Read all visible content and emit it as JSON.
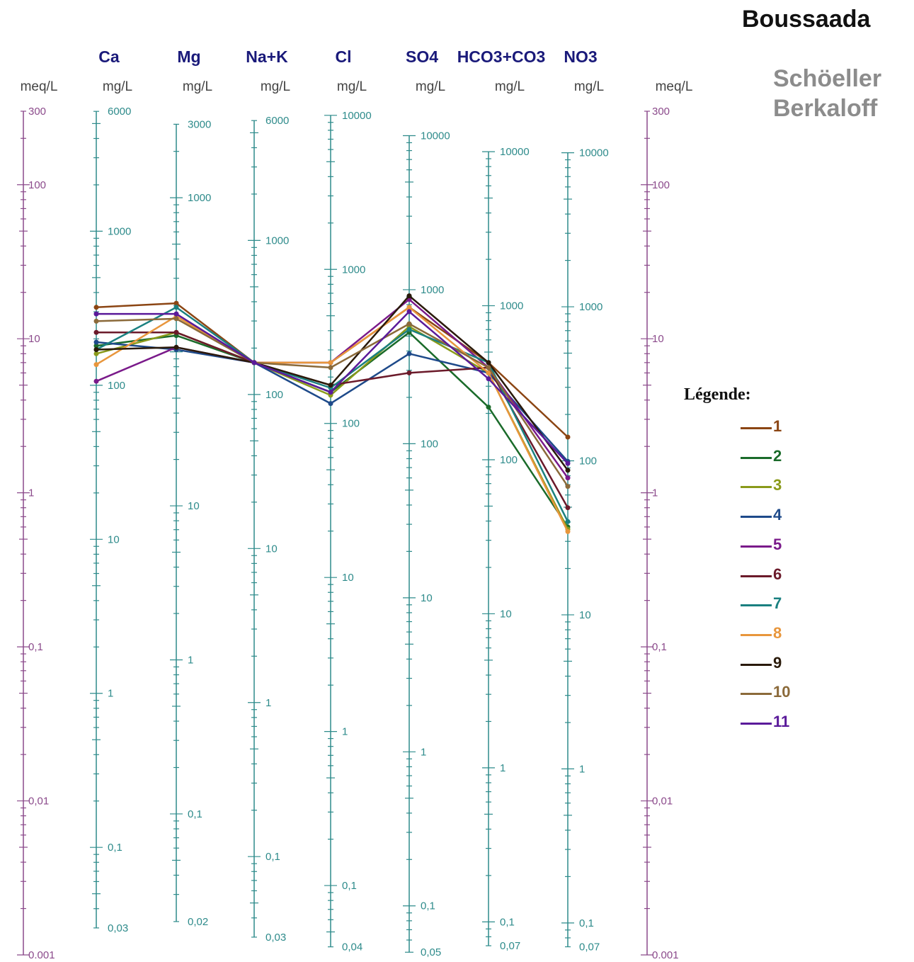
{
  "title": "Boussaada",
  "subtitle": [
    "Schöeller",
    "Berkaloff"
  ],
  "legend": {
    "title": "Légende:"
  },
  "chart_data": {
    "type": "line",
    "y_scale": "log",
    "ylim_meq": [
      0.001,
      300
    ],
    "unit_outer": "meq/L",
    "unit_inner": "mg/L",
    "categories": [
      "Ca",
      "Mg",
      "Na+K",
      "Cl",
      "SO4",
      "HCO3+CO3",
      "NO3"
    ],
    "meq_axis": {
      "labels": [
        "300",
        "100",
        "10",
        "1",
        "0,1",
        "0,01",
        "0.001"
      ],
      "values": [
        300,
        100,
        10,
        1,
        0.1,
        0.01,
        0.001
      ]
    },
    "axes": [
      {
        "name": "Ca",
        "unit": "mg/L",
        "eq_weight": 20.04,
        "labels": [
          "6000",
          "1000",
          "100",
          "10",
          "1",
          "0,1",
          "0,03"
        ],
        "values": [
          6000,
          1000,
          100,
          10,
          1,
          0.1,
          0.03
        ]
      },
      {
        "name": "Mg",
        "unit": "mg/L",
        "eq_weight": 12.15,
        "labels": [
          "3000",
          "1000",
          "10",
          "1",
          "0,1",
          "0,02"
        ],
        "values": [
          3000,
          1000,
          10,
          1,
          0.1,
          0.02
        ]
      },
      {
        "name": "Na+K",
        "unit": "mg/L",
        "eq_weight": 23.0,
        "labels": [
          "6000",
          "1000",
          "100",
          "10",
          "1",
          "0,1",
          "0,03"
        ],
        "values": [
          6000,
          1000,
          100,
          10,
          1,
          0.1,
          0.03
        ]
      },
      {
        "name": "Cl",
        "unit": "mg/L",
        "eq_weight": 35.45,
        "labels": [
          "10000",
          "1000",
          "100",
          "10",
          "1",
          "0,1",
          "0,04"
        ],
        "values": [
          10000,
          1000,
          100,
          10,
          1,
          0.1,
          0.04
        ]
      },
      {
        "name": "SO4",
        "unit": "mg/L",
        "eq_weight": 48.03,
        "labels": [
          "10000",
          "1000",
          "100",
          "10",
          "1",
          "0,1",
          "0,05"
        ],
        "values": [
          10000,
          1000,
          100,
          10,
          1,
          0.1,
          0.05
        ]
      },
      {
        "name": "HCO3+CO3",
        "unit": "mg/L",
        "eq_weight": 61.02,
        "labels": [
          "10000",
          "1000",
          "100",
          "10",
          "1",
          "0,1",
          "0,07"
        ],
        "values": [
          10000,
          1000,
          100,
          10,
          1,
          0.1,
          0.07
        ]
      },
      {
        "name": "NO3",
        "unit": "mg/L",
        "eq_weight": 62.0,
        "labels": [
          "10000",
          "1000",
          "100",
          "10",
          "1",
          "0,1",
          "0,07"
        ],
        "values": [
          10000,
          1000,
          100,
          10,
          1,
          0.1,
          0.07
        ]
      }
    ],
    "series": [
      {
        "name": "1",
        "color": "#8b4513",
        "values": [
          16,
          17,
          7,
          7,
          16,
          7,
          2.3
        ]
      },
      {
        "name": "2",
        "color": "#1a6b2a",
        "values": [
          9,
          10.5,
          7,
          4.5,
          11,
          3.6,
          0.6
        ]
      },
      {
        "name": "3",
        "color": "#8a9a1a",
        "values": [
          8,
          11,
          7,
          4.3,
          12,
          6,
          0.58
        ]
      },
      {
        "name": "4",
        "color": "#1e4a8a",
        "values": [
          9.5,
          8.5,
          7,
          3.8,
          8,
          6,
          1.6
        ]
      },
      {
        "name": "5",
        "color": "#7a1a8a",
        "values": [
          5.3,
          8.8,
          7,
          7,
          18,
          6.5,
          1.25
        ]
      },
      {
        "name": "6",
        "color": "#6b1a2a",
        "values": [
          11,
          11,
          7,
          5,
          6,
          6.5,
          0.8
        ]
      },
      {
        "name": "7",
        "color": "#1a8080",
        "values": [
          8.5,
          16,
          7,
          4.8,
          11.5,
          7,
          0.65
        ]
      },
      {
        "name": "8",
        "color": "#e8963c",
        "values": [
          6.8,
          14,
          7,
          7,
          16,
          6,
          0.56
        ]
      },
      {
        "name": "9",
        "color": "#2a1a0a",
        "values": [
          8.5,
          8.8,
          7,
          5,
          19,
          7,
          1.4
        ]
      },
      {
        "name": "10",
        "color": "#8b6a3a",
        "values": [
          13,
          13.5,
          7,
          6.5,
          12.5,
          6.5,
          1.1
        ]
      },
      {
        "name": "11",
        "color": "#5a1a9a",
        "values": [
          14.5,
          14.5,
          7,
          4.5,
          15,
          5.5,
          1.55
        ]
      }
    ]
  }
}
